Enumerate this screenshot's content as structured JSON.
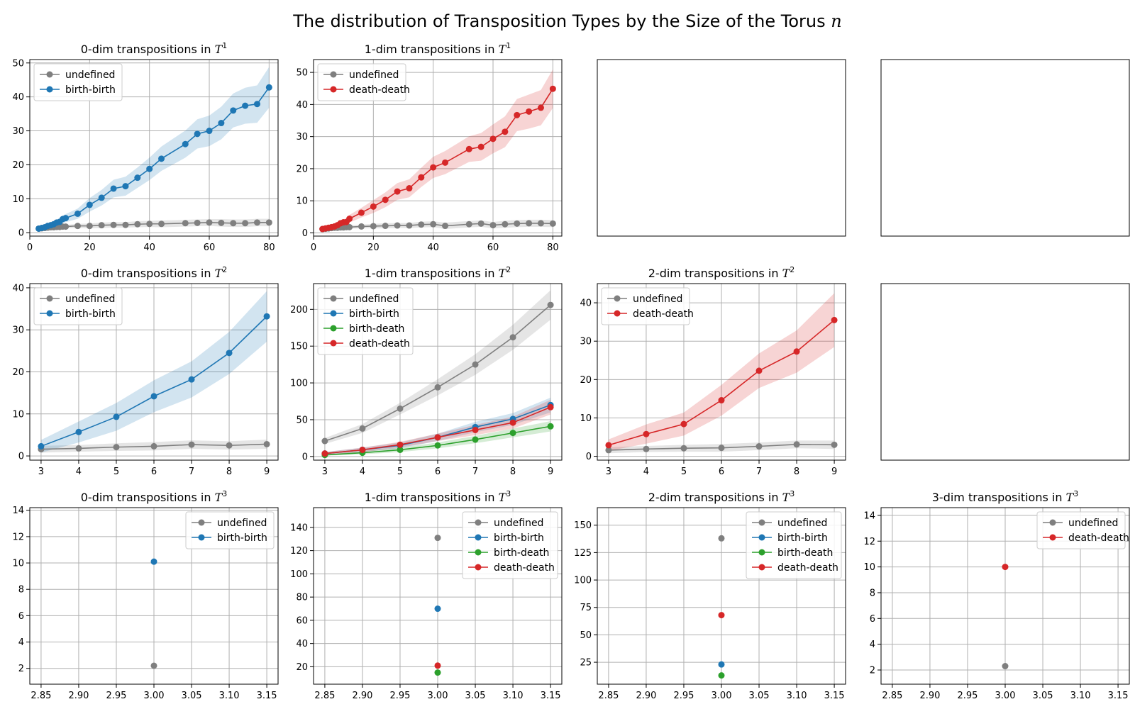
{
  "figure": {
    "title": "The distribution of Transposition Types by the Size of the Torus",
    "title_var": "n"
  },
  "colors": {
    "undefined": "#7f7f7f",
    "birth-birth": "#1f77b4",
    "birth-death": "#2ca02c",
    "death-death": "#d62728"
  },
  "chart_data": [
    {
      "type": "line",
      "row": 0,
      "col": 0,
      "title_text": "0-dim transpositions in ",
      "title_space": "T",
      "title_exp": "1",
      "xlim": [
        0,
        83
      ],
      "ylim": [
        -1,
        51
      ],
      "xticks": [
        0,
        20,
        40,
        60,
        80
      ],
      "yticks": [
        0,
        10,
        20,
        30,
        40,
        50
      ],
      "legend": "upper-left",
      "series": [
        {
          "name": "undefined",
          "color": "#7f7f7f",
          "x": [
            3,
            4,
            5,
            6,
            7,
            8,
            9,
            10,
            11,
            12,
            16,
            20,
            24,
            28,
            32,
            36,
            40,
            44,
            52,
            56,
            60,
            64,
            68,
            72,
            76,
            80
          ],
          "y": [
            1.2,
            1.3,
            1.4,
            1.5,
            1.6,
            1.6,
            1.7,
            1.7,
            1.8,
            1.8,
            2.0,
            2.0,
            2.2,
            2.3,
            2.3,
            2.5,
            2.6,
            2.6,
            2.8,
            2.9,
            3.0,
            2.9,
            2.8,
            2.8,
            3.0,
            3.0
          ],
          "band": [
            0.3,
            0.3,
            0.3,
            0.4,
            0.4,
            0.4,
            0.5,
            0.5,
            0.5,
            0.5,
            0.6,
            0.7,
            0.8,
            0.8,
            0.8,
            0.9,
            0.9,
            1.0,
            1.0,
            1.0,
            1.0,
            1.1,
            1.1,
            1.1,
            1.1,
            1.1
          ]
        },
        {
          "name": "birth-birth",
          "color": "#1f77b4",
          "x": [
            3,
            4,
            5,
            6,
            7,
            8,
            9,
            10,
            11,
            12,
            16,
            20,
            24,
            28,
            32,
            36,
            40,
            44,
            52,
            56,
            60,
            64,
            68,
            72,
            76,
            80
          ],
          "y": [
            1.2,
            1.4,
            1.6,
            2.0,
            2.2,
            2.5,
            3.0,
            3.2,
            4.0,
            4.3,
            5.6,
            8.2,
            10.3,
            13.0,
            13.7,
            16.2,
            18.8,
            21.8,
            26.1,
            29.1,
            30.0,
            32.3,
            36.0,
            37.4,
            37.9,
            42.8
          ],
          "band": [
            0.3,
            0.4,
            0.5,
            0.6,
            0.7,
            0.8,
            0.9,
            1.0,
            1.1,
            1.2,
            1.5,
            2.0,
            2.3,
            2.6,
            2.8,
            3.0,
            3.3,
            3.6,
            4.0,
            4.3,
            4.5,
            4.8,
            5.0,
            5.3,
            5.5,
            6.0
          ]
        }
      ]
    },
    {
      "type": "line",
      "row": 0,
      "col": 1,
      "title_text": "1-dim transpositions in ",
      "title_space": "T",
      "title_exp": "1",
      "xlim": [
        0,
        83
      ],
      "ylim": [
        -1,
        54
      ],
      "xticks": [
        0,
        20,
        40,
        60,
        80
      ],
      "yticks": [
        0,
        10,
        20,
        30,
        40,
        50
      ],
      "legend": "upper-left",
      "series": [
        {
          "name": "undefined",
          "color": "#7f7f7f",
          "x": [
            3,
            4,
            5,
            6,
            7,
            8,
            9,
            10,
            11,
            12,
            16,
            20,
            24,
            28,
            32,
            36,
            40,
            44,
            52,
            56,
            60,
            64,
            68,
            72,
            76,
            80
          ],
          "y": [
            1.2,
            1.3,
            1.4,
            1.5,
            1.6,
            1.6,
            1.7,
            1.7,
            1.8,
            1.8,
            2.0,
            2.1,
            2.2,
            2.3,
            2.3,
            2.6,
            2.7,
            2.2,
            2.7,
            2.9,
            2.4,
            2.7,
            2.9,
            3.0,
            3.0,
            2.9
          ],
          "band": [
            0.3,
            0.3,
            0.3,
            0.4,
            0.4,
            0.4,
            0.5,
            0.5,
            0.5,
            0.5,
            0.6,
            0.7,
            0.8,
            0.8,
            0.8,
            0.9,
            0.9,
            1.0,
            1.0,
            1.0,
            1.0,
            1.1,
            1.1,
            1.1,
            1.1,
            1.1
          ]
        },
        {
          "name": "death-death",
          "color": "#d62728",
          "x": [
            3,
            4,
            5,
            6,
            7,
            8,
            9,
            10,
            11,
            12,
            16,
            20,
            24,
            28,
            32,
            36,
            40,
            44,
            52,
            56,
            60,
            64,
            68,
            72,
            76,
            80
          ],
          "y": [
            1.2,
            1.4,
            1.6,
            1.8,
            2.0,
            2.4,
            3.0,
            3.3,
            3.4,
            4.4,
            6.3,
            8.2,
            10.3,
            12.9,
            13.9,
            17.3,
            20.4,
            21.9,
            26.1,
            26.8,
            29.3,
            31.5,
            36.7,
            37.8,
            39.0,
            44.9
          ],
          "band": [
            0.3,
            0.4,
            0.5,
            0.6,
            0.7,
            0.8,
            0.9,
            1.0,
            1.1,
            1.2,
            1.5,
            2.0,
            2.3,
            2.6,
            2.8,
            3.0,
            3.3,
            3.6,
            4.0,
            4.3,
            4.5,
            4.8,
            5.0,
            5.3,
            5.5,
            6.0
          ]
        }
      ]
    },
    {
      "type": "empty",
      "row": 0,
      "col": 2
    },
    {
      "type": "empty",
      "row": 0,
      "col": 3
    },
    {
      "type": "line",
      "row": 1,
      "col": 0,
      "title_text": "0-dim transpositions in ",
      "title_space": "T",
      "title_exp": "2",
      "xlim": [
        2.7,
        9.3
      ],
      "ylim": [
        -1,
        41
      ],
      "xticks": [
        3,
        4,
        5,
        6,
        7,
        8,
        9
      ],
      "yticks": [
        0,
        10,
        20,
        30,
        40
      ],
      "legend": "upper-left",
      "series": [
        {
          "name": "undefined",
          "color": "#7f7f7f",
          "x": [
            3,
            4,
            5,
            6,
            7,
            8,
            9
          ],
          "y": [
            1.6,
            1.8,
            2.1,
            2.3,
            2.7,
            2.5,
            2.8
          ],
          "band": [
            0.8,
            0.8,
            0.9,
            1.0,
            1.0,
            1.0,
            1.1
          ]
        },
        {
          "name": "birth-birth",
          "color": "#1f77b4",
          "x": [
            3,
            4,
            5,
            6,
            7,
            8,
            9
          ],
          "y": [
            2.3,
            5.7,
            9.3,
            14.2,
            18.2,
            24.5,
            33.2
          ],
          "band": [
            1.5,
            2.5,
            3.3,
            3.8,
            4.3,
            5.0,
            6.0
          ]
        }
      ]
    },
    {
      "type": "line",
      "row": 1,
      "col": 1,
      "title_text": "1-dim transpositions in ",
      "title_space": "T",
      "title_exp": "2",
      "xlim": [
        2.7,
        9.3
      ],
      "ylim": [
        -5,
        235
      ],
      "xticks": [
        3,
        4,
        5,
        6,
        7,
        8,
        9
      ],
      "yticks": [
        0,
        50,
        100,
        150,
        200
      ],
      "legend": "upper-left",
      "series": [
        {
          "name": "undefined",
          "color": "#7f7f7f",
          "x": [
            3,
            4,
            5,
            6,
            7,
            8,
            9
          ],
          "y": [
            21,
            38,
            65,
            94,
            125,
            162,
            206
          ],
          "band": [
            4,
            6,
            8,
            11,
            14,
            17,
            20
          ]
        },
        {
          "name": "birth-birth",
          "color": "#1f77b4",
          "x": [
            3,
            4,
            5,
            6,
            7,
            8,
            9
          ],
          "y": [
            4,
            9,
            15,
            26,
            40,
            51,
            70
          ],
          "band": [
            2,
            3,
            4,
            5,
            7,
            8,
            10
          ]
        },
        {
          "name": "birth-death",
          "color": "#2ca02c",
          "x": [
            3,
            4,
            5,
            6,
            7,
            8,
            9
          ],
          "y": [
            2,
            5,
            9,
            15,
            23,
            32,
            41
          ],
          "band": [
            1,
            2,
            3,
            4,
            5,
            6,
            7
          ]
        },
        {
          "name": "death-death",
          "color": "#d62728",
          "x": [
            3,
            4,
            5,
            6,
            7,
            8,
            9
          ],
          "y": [
            4,
            9,
            16,
            26,
            36,
            46,
            67
          ],
          "band": [
            2,
            3,
            4,
            5,
            7,
            8,
            10
          ]
        }
      ]
    },
    {
      "type": "line",
      "row": 1,
      "col": 2,
      "title_text": "2-dim transpositions in ",
      "title_space": "T",
      "title_exp": "2",
      "xlim": [
        2.7,
        9.3
      ],
      "ylim": [
        -1,
        45
      ],
      "xticks": [
        3,
        4,
        5,
        6,
        7,
        8,
        9
      ],
      "yticks": [
        0,
        10,
        20,
        30,
        40
      ],
      "legend": "upper-left",
      "series": [
        {
          "name": "undefined",
          "color": "#7f7f7f",
          "x": [
            3,
            4,
            5,
            6,
            7,
            8,
            9
          ],
          "y": [
            1.6,
            1.9,
            2.1,
            2.2,
            2.6,
            3.1,
            3.0
          ],
          "band": [
            0.8,
            0.8,
            0.9,
            1.0,
            1.0,
            1.0,
            1.1
          ]
        },
        {
          "name": "death-death",
          "color": "#d62728",
          "x": [
            3,
            4,
            5,
            6,
            7,
            8,
            9
          ],
          "y": [
            2.9,
            5.8,
            8.4,
            14.6,
            22.3,
            27.3,
            35.5
          ],
          "band": [
            1.5,
            2.5,
            3.0,
            4.0,
            4.5,
            5.5,
            7.0
          ]
        }
      ]
    },
    {
      "type": "empty",
      "row": 1,
      "col": 3
    },
    {
      "type": "scatter",
      "row": 2,
      "col": 0,
      "title_text": "0-dim transpositions in ",
      "title_space": "T",
      "title_exp": "3",
      "xlim": [
        2.835,
        3.165
      ],
      "ylim": [
        0.8,
        14.2
      ],
      "xticks": [
        2.85,
        2.9,
        2.95,
        3.0,
        3.05,
        3.1,
        3.15
      ],
      "xtick_labels": [
        "2.85",
        "2.90",
        "2.95",
        "3.00",
        "3.05",
        "3.10",
        "3.15"
      ],
      "yticks": [
        2,
        4,
        6,
        8,
        10,
        12,
        14
      ],
      "legend": "upper-right",
      "series": [
        {
          "name": "undefined",
          "color": "#7f7f7f",
          "x": [
            3.0
          ],
          "y": [
            2.2
          ]
        },
        {
          "name": "birth-birth",
          "color": "#1f77b4",
          "x": [
            3.0
          ],
          "y": [
            10.1
          ]
        }
      ]
    },
    {
      "type": "scatter",
      "row": 2,
      "col": 1,
      "title_text": "1-dim transpositions in ",
      "title_space": "T",
      "title_exp": "3",
      "xlim": [
        2.835,
        3.165
      ],
      "ylim": [
        5,
        157
      ],
      "xticks": [
        2.85,
        2.9,
        2.95,
        3.0,
        3.05,
        3.1,
        3.15
      ],
      "xtick_labels": [
        "2.85",
        "2.90",
        "2.95",
        "3.00",
        "3.05",
        "3.10",
        "3.15"
      ],
      "yticks": [
        20,
        40,
        60,
        80,
        100,
        120,
        140
      ],
      "legend": "upper-right",
      "series": [
        {
          "name": "undefined",
          "color": "#7f7f7f",
          "x": [
            3.0
          ],
          "y": [
            131
          ]
        },
        {
          "name": "birth-birth",
          "color": "#1f77b4",
          "x": [
            3.0
          ],
          "y": [
            70
          ]
        },
        {
          "name": "birth-death",
          "color": "#2ca02c",
          "x": [
            3.0
          ],
          "y": [
            15
          ]
        },
        {
          "name": "death-death",
          "color": "#d62728",
          "x": [
            3.0
          ],
          "y": [
            21
          ]
        }
      ]
    },
    {
      "type": "scatter",
      "row": 2,
      "col": 2,
      "title_text": "2-dim transpositions in ",
      "title_space": "T",
      "title_exp": "3",
      "xlim": [
        2.835,
        3.165
      ],
      "ylim": [
        5,
        166
      ],
      "xticks": [
        2.85,
        2.9,
        2.95,
        3.0,
        3.05,
        3.1,
        3.15
      ],
      "xtick_labels": [
        "2.85",
        "2.90",
        "2.95",
        "3.00",
        "3.05",
        "3.10",
        "3.15"
      ],
      "yticks": [
        25,
        50,
        75,
        100,
        125,
        150
      ],
      "legend": "upper-right",
      "series": [
        {
          "name": "undefined",
          "color": "#7f7f7f",
          "x": [
            3.0
          ],
          "y": [
            138
          ]
        },
        {
          "name": "birth-birth",
          "color": "#1f77b4",
          "x": [
            3.0
          ],
          "y": [
            23
          ]
        },
        {
          "name": "birth-death",
          "color": "#2ca02c",
          "x": [
            3.0
          ],
          "y": [
            13
          ]
        },
        {
          "name": "death-death",
          "color": "#d62728",
          "x": [
            3.0
          ],
          "y": [
            68
          ]
        }
      ]
    },
    {
      "type": "scatter",
      "row": 2,
      "col": 3,
      "title_text": "3-dim transpositions in ",
      "title_space": "T",
      "title_exp": "3",
      "xlim": [
        2.835,
        3.165
      ],
      "ylim": [
        0.9,
        14.6
      ],
      "xticks": [
        2.85,
        2.9,
        2.95,
        3.0,
        3.05,
        3.1,
        3.15
      ],
      "xtick_labels": [
        "2.85",
        "2.90",
        "2.95",
        "3.00",
        "3.05",
        "3.10",
        "3.15"
      ],
      "yticks": [
        2,
        4,
        6,
        8,
        10,
        12,
        14
      ],
      "legend": "upper-right",
      "series": [
        {
          "name": "undefined",
          "color": "#7f7f7f",
          "x": [
            3.0
          ],
          "y": [
            2.3
          ]
        },
        {
          "name": "death-death",
          "color": "#d62728",
          "x": [
            3.0
          ],
          "y": [
            10.0
          ]
        }
      ]
    }
  ]
}
